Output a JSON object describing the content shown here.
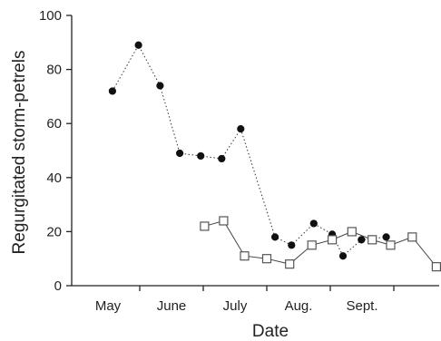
{
  "chart_data": {
    "type": "line",
    "xlabel": "Date",
    "ylabel": "Regurgitated storm-petrels",
    "ylim": [
      0,
      100
    ],
    "yticks": [
      0,
      20,
      40,
      60,
      80,
      100
    ],
    "month_labels": [
      "May",
      "June",
      "July",
      "Aug.",
      "Sept."
    ],
    "x_range_months": [
      0,
      5
    ],
    "grid": false,
    "legend": "none",
    "series": [
      {
        "marker": "filled-circle",
        "line": "dotted",
        "points": [
          {
            "x": 0.57,
            "y": 72
          },
          {
            "x": 0.98,
            "y": 89
          },
          {
            "x": 1.32,
            "y": 74
          },
          {
            "x": 1.63,
            "y": 49
          },
          {
            "x": 1.96,
            "y": 48
          },
          {
            "x": 2.29,
            "y": 47
          },
          {
            "x": 2.59,
            "y": 58
          },
          {
            "x": 3.13,
            "y": 18
          },
          {
            "x": 3.39,
            "y": 15
          },
          {
            "x": 3.74,
            "y": 23
          },
          {
            "x": 4.03,
            "y": 19
          },
          {
            "x": 4.2,
            "y": 11
          },
          {
            "x": 4.49,
            "y": 17
          },
          {
            "x": 4.88,
            "y": 18
          }
        ]
      },
      {
        "marker": "open-square",
        "line": "solid",
        "points": [
          {
            "x": 2.02,
            "y": 22
          },
          {
            "x": 2.32,
            "y": 24
          },
          {
            "x": 2.65,
            "y": 11
          },
          {
            "x": 3.0,
            "y": 10
          },
          {
            "x": 3.36,
            "y": 8
          },
          {
            "x": 3.71,
            "y": 15
          },
          {
            "x": 4.03,
            "y": 17
          },
          {
            "x": 4.34,
            "y": 20
          },
          {
            "x": 4.66,
            "y": 17
          },
          {
            "x": 4.95,
            "y": 15
          },
          {
            "x": 5.29,
            "y": 18
          },
          {
            "x": 5.67,
            "y": 7
          }
        ]
      }
    ]
  }
}
